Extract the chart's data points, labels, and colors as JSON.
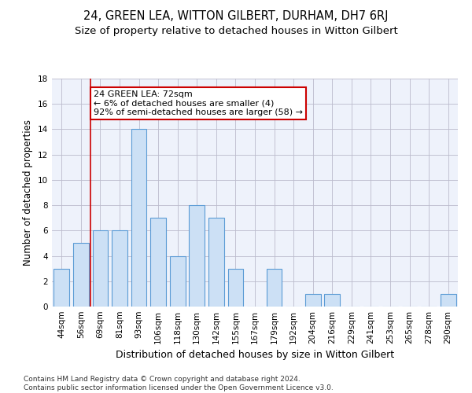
{
  "title": "24, GREEN LEA, WITTON GILBERT, DURHAM, DH7 6RJ",
  "subtitle": "Size of property relative to detached houses in Witton Gilbert",
  "xlabel": "Distribution of detached houses by size in Witton Gilbert",
  "ylabel": "Number of detached properties",
  "categories": [
    "44sqm",
    "56sqm",
    "69sqm",
    "81sqm",
    "93sqm",
    "106sqm",
    "118sqm",
    "130sqm",
    "142sqm",
    "155sqm",
    "167sqm",
    "179sqm",
    "192sqm",
    "204sqm",
    "216sqm",
    "229sqm",
    "241sqm",
    "253sqm",
    "265sqm",
    "278sqm",
    "290sqm"
  ],
  "values": [
    3,
    5,
    6,
    6,
    14,
    7,
    4,
    8,
    7,
    3,
    0,
    3,
    0,
    1,
    1,
    0,
    0,
    0,
    0,
    0,
    1
  ],
  "bar_color": "#cce0f5",
  "bar_edge_color": "#5b9bd5",
  "background_color": "#eef2fb",
  "grid_color": "#bbbbcc",
  "annotation_box_text": "24 GREEN LEA: 72sqm\n← 6% of detached houses are smaller (4)\n92% of semi-detached houses are larger (58) →",
  "vline_color": "#cc0000",
  "box_color": "#cc0000",
  "ylim": [
    0,
    18
  ],
  "yticks": [
    0,
    2,
    4,
    6,
    8,
    10,
    12,
    14,
    16,
    18
  ],
  "footnote": "Contains HM Land Registry data © Crown copyright and database right 2024.\nContains public sector information licensed under the Open Government Licence v3.0.",
  "title_fontsize": 10.5,
  "subtitle_fontsize": 9.5,
  "xlabel_fontsize": 9,
  "ylabel_fontsize": 8.5,
  "tick_fontsize": 7.5,
  "annot_fontsize": 8,
  "footnote_fontsize": 6.5
}
